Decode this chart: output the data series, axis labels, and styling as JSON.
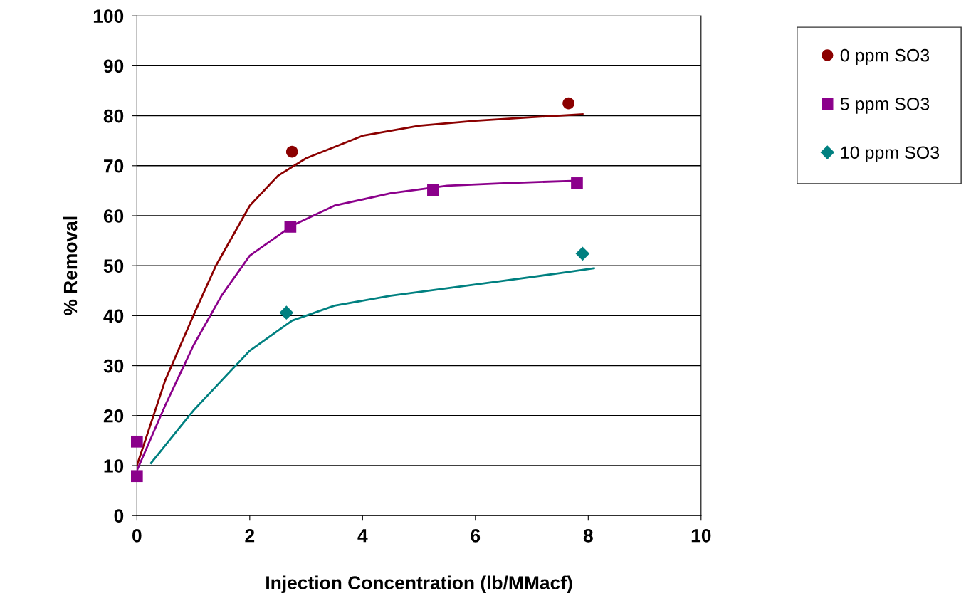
{
  "chart_data": {
    "type": "scatter",
    "xlabel": "Injection Concentration (lb/MMacf)",
    "ylabel": "% Removal",
    "xlim": [
      0,
      10
    ],
    "xticks": [
      0,
      2,
      4,
      6,
      8,
      10
    ],
    "ylim": [
      0,
      100
    ],
    "yticks": [
      0,
      10,
      20,
      30,
      40,
      50,
      60,
      70,
      80,
      90,
      100
    ],
    "grid": "y",
    "legend": "top right",
    "series": [
      {
        "name": "0 ppm SO3",
        "color": "#8b0000",
        "marker": "circle",
        "x": [
          2.75,
          7.65
        ],
        "values": [
          72.8,
          82.5
        ]
      },
      {
        "name": "5 ppm SO3",
        "color": "#8b008b",
        "marker": "square",
        "x": [
          0,
          0,
          2.72,
          5.25,
          7.8
        ],
        "values": [
          14.8,
          7.9,
          57.8,
          65.1,
          66.5
        ]
      },
      {
        "name": "10 ppm SO3",
        "color": "#008080",
        "marker": "diamond",
        "x": [
          2.65,
          7.9
        ],
        "values": [
          40.6,
          52.4
        ]
      },
      {
        "type": "line",
        "color": "#8b0000",
        "marker": "none",
        "x": [
          0,
          0.5,
          1,
          1.4,
          2,
          2.5,
          3,
          4,
          5,
          6,
          7,
          7.9
        ],
        "values": [
          10,
          27,
          40,
          50,
          62,
          68,
          71.5,
          76,
          78,
          79,
          79.7,
          80.3
        ]
      },
      {
        "type": "line",
        "color": "#8b008b",
        "marker": "none",
        "x": [
          0,
          0.5,
          1,
          1.5,
          2,
          2.75,
          3.5,
          4.5,
          5.5,
          6.5,
          7.8
        ],
        "values": [
          9,
          22,
          34,
          44,
          52,
          58,
          62,
          64.5,
          66,
          66.5,
          67
        ]
      },
      {
        "type": "line",
        "color": "#008080",
        "marker": "none",
        "x": [
          0.25,
          0.5,
          1,
          1.5,
          2,
          2.75,
          3.5,
          4.5,
          5.5,
          6.5,
          7.5,
          8.1
        ],
        "values": [
          10.5,
          14,
          21,
          27,
          33,
          39,
          42,
          44,
          45.5,
          47,
          48.5,
          49.5
        ]
      }
    ]
  }
}
